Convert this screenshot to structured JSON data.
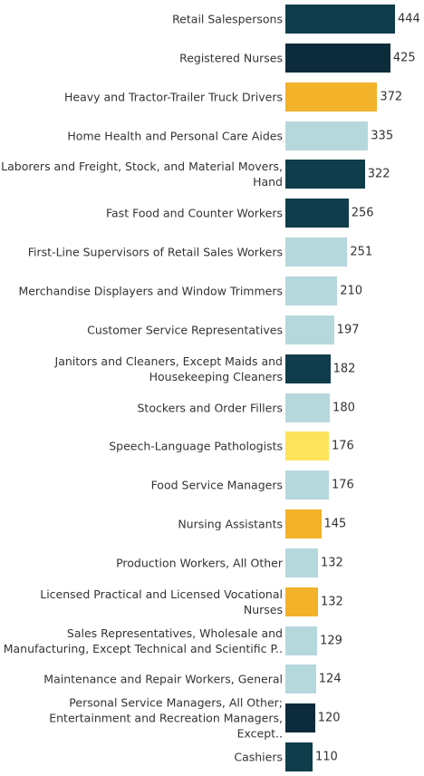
{
  "chart_data": {
    "type": "bar",
    "orientation": "horizontal",
    "categories": [
      "Retail Salespersons",
      "Registered Nurses",
      "Heavy and Tractor-Trailer Truck Drivers",
      "Home Health and Personal Care Aides",
      "Laborers and Freight, Stock, and Material Movers,\nHand",
      "Fast Food and Counter Workers",
      "First-Line Supervisors of Retail Sales Workers",
      "Merchandise Displayers and Window Trimmers",
      "Customer Service Representatives",
      "Janitors and Cleaners, Except Maids and\nHousekeeping Cleaners",
      "Stockers and Order Fillers",
      "Speech-Language Pathologists",
      "Food Service Managers",
      "Nursing Assistants",
      "Production Workers, All Other",
      "Licensed Practical and Licensed Vocational Nurses",
      "Sales Representatives, Wholesale and\nManufacturing, Except Technical and Scientific P..",
      "Maintenance and Repair Workers, General",
      "Personal Service Managers, All Other;\nEntertainment and Recreation Managers, Except..",
      "Cashiers"
    ],
    "values": [
      444,
      425,
      372,
      335,
      322,
      256,
      251,
      210,
      197,
      182,
      180,
      176,
      176,
      145,
      132,
      132,
      129,
      124,
      120,
      110
    ],
    "colors": [
      "#0f3d4c",
      "#0c2b3b",
      "#f2b22a",
      "#b5d8dd",
      "#0f3d4c",
      "#0f3d4c",
      "#b5d8dd",
      "#b5d8dd",
      "#b5d8dd",
      "#0f3d4c",
      "#b5d8dd",
      "#fde35c",
      "#b5d8dd",
      "#f2b22a",
      "#b5d8dd",
      "#f2b22a",
      "#b5d8dd",
      "#b5d8dd",
      "#0c2b3b",
      "#0f3d4c"
    ]
  }
}
